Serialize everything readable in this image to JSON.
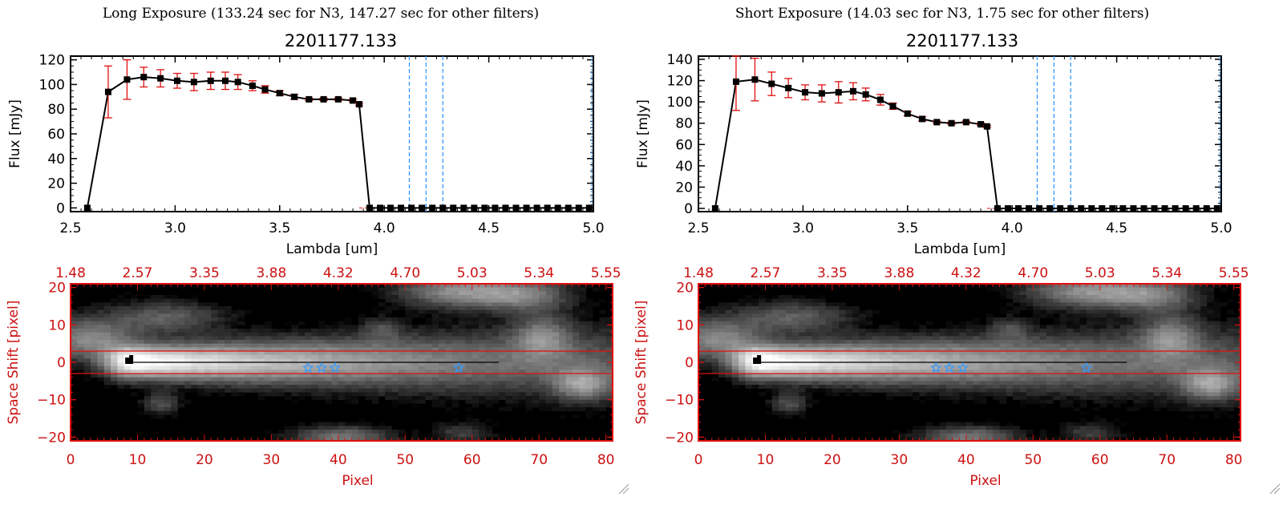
{
  "panels": [
    {
      "heading": "Long Exposure (133.24 sec for N3, 147.27 sec for other filters)",
      "spectrum": {
        "title": "2201177.133",
        "xlabel": "Lambda [um]",
        "ylabel": "Flux [mJy]",
        "yticks": [
          "0",
          "20",
          "40",
          "60",
          "80",
          "100",
          "120"
        ]
      },
      "image": {
        "xlabel": "Pixel",
        "ylabel": "Space Shift [pixel]",
        "top_ticks": [
          "1.48",
          "2.57",
          "3.35",
          "3.88",
          "4.32",
          "4.70",
          "5.03",
          "5.34",
          "5.55"
        ],
        "bottom_ticks": [
          "0",
          "10",
          "20",
          "30",
          "40",
          "50",
          "60",
          "70",
          "80"
        ],
        "left_ticks": [
          "20",
          "10",
          "0",
          "−10",
          "−20"
        ]
      }
    },
    {
      "heading": "Short Exposure (14.03 sec for N3, 1.75 sec for other filters)",
      "spectrum": {
        "title": "2201177.133",
        "xlabel": "Lambda [um]",
        "ylabel": "Flux [mJy]",
        "yticks": [
          "0",
          "20",
          "40",
          "60",
          "80",
          "100",
          "120",
          "140"
        ]
      },
      "image": {
        "xlabel": "Pixel",
        "ylabel": "Space Shift [pixel]",
        "top_ticks": [
          "1.48",
          "2.57",
          "3.35",
          "3.88",
          "4.32",
          "4.70",
          "5.03",
          "5.34",
          "5.55"
        ],
        "bottom_ticks": [
          "0",
          "10",
          "20",
          "30",
          "40",
          "50",
          "60",
          "70",
          "80"
        ],
        "left_ticks": [
          "20",
          "10",
          "0",
          "−10",
          "−20"
        ]
      }
    }
  ],
  "colors": {
    "axis": "#000000",
    "errorbar": "#e01010",
    "marker": "#000000",
    "vline": "#3399ff",
    "image_frame": "#e01010",
    "image_text": "#cc1111",
    "star": "#3399ff"
  },
  "chart_data": [
    {
      "type": "line",
      "title": "2201177.133",
      "xlabel": "Lambda [um]",
      "ylabel": "Flux [mJy]",
      "xlim": [
        2.5,
        5.0
      ],
      "ylim": [
        -3,
        123
      ],
      "xticks": [
        "2.5",
        "3.0",
        "3.5",
        "4.0",
        "4.5",
        "5.0"
      ],
      "yticks": [
        "0",
        "20",
        "40",
        "60",
        "80",
        "100",
        "120"
      ],
      "x": [
        2.58,
        2.68,
        2.77,
        2.85,
        2.93,
        3.01,
        3.09,
        3.17,
        3.24,
        3.3,
        3.37,
        3.43,
        3.5,
        3.57,
        3.64,
        3.71,
        3.78,
        3.85,
        3.88,
        3.93,
        3.98,
        4.03,
        4.08,
        4.13,
        4.18,
        4.23,
        4.28,
        4.33,
        4.38,
        4.43,
        4.48,
        4.53,
        4.58,
        4.63,
        4.68,
        4.73,
        4.78,
        4.83,
        4.88,
        4.93,
        4.98
      ],
      "y": [
        0,
        94,
        104,
        106,
        105,
        103,
        102,
        103,
        103,
        102,
        99,
        96,
        93,
        90,
        88,
        88,
        88,
        87,
        84,
        0,
        0,
        0,
        0,
        0,
        0,
        0,
        0,
        0,
        0,
        0,
        0,
        0,
        0,
        0,
        0,
        0,
        0,
        0,
        0,
        0,
        0
      ],
      "yerr": [
        0,
        21,
        16,
        8,
        7,
        6,
        7,
        7,
        7,
        6,
        4,
        3,
        2,
        2,
        1,
        1,
        1,
        1,
        1,
        0,
        0,
        0,
        0,
        0,
        0,
        0,
        0,
        0,
        0,
        0,
        0,
        0,
        0,
        0,
        0,
        0,
        0,
        0,
        0,
        0,
        0
      ],
      "vlines": [
        4.12,
        4.2,
        4.28
      ]
    },
    {
      "type": "line",
      "title": "2201177.133",
      "xlabel": "Lambda [um]",
      "ylabel": "Flux [mJy]",
      "xlim": [
        2.5,
        5.0
      ],
      "ylim": [
        -3,
        143
      ],
      "xticks": [
        "2.5",
        "3.0",
        "3.5",
        "4.0",
        "4.5",
        "5.0"
      ],
      "yticks": [
        "0",
        "20",
        "40",
        "60",
        "80",
        "100",
        "120",
        "140"
      ],
      "x": [
        2.58,
        2.68,
        2.77,
        2.85,
        2.93,
        3.01,
        3.09,
        3.17,
        3.24,
        3.3,
        3.37,
        3.43,
        3.5,
        3.57,
        3.64,
        3.71,
        3.78,
        3.85,
        3.88,
        3.93,
        3.98,
        4.03,
        4.08,
        4.13,
        4.18,
        4.23,
        4.28,
        4.33,
        4.38,
        4.43,
        4.48,
        4.53,
        4.58,
        4.63,
        4.68,
        4.73,
        4.78,
        4.83,
        4.88,
        4.93,
        4.98
      ],
      "y": [
        0,
        119,
        121,
        117,
        113,
        109,
        108,
        109,
        110,
        107,
        102,
        96,
        89,
        84,
        81,
        80,
        81,
        79,
        77,
        0,
        0,
        0,
        0,
        0,
        0,
        0,
        0,
        0,
        0,
        0,
        0,
        0,
        0,
        0,
        0,
        0,
        0,
        0,
        0,
        0,
        0
      ],
      "yerr": [
        0,
        27,
        20,
        11,
        9,
        7,
        8,
        10,
        8,
        6,
        5,
        3,
        2,
        2,
        1,
        1,
        1,
        1,
        1,
        0,
        0,
        0,
        0,
        0,
        0,
        0,
        0,
        0,
        0,
        0,
        0,
        0,
        0,
        0,
        0,
        0,
        0,
        0,
        0,
        0,
        0
      ],
      "vlines": [
        4.12,
        4.2,
        4.28
      ]
    },
    {
      "type": "heatmap",
      "xlabel": "Pixel",
      "ylabel": "Space Shift [pixel]",
      "xlim": [
        0,
        81
      ],
      "ylim": [
        -21,
        21
      ],
      "xticks": [
        "0",
        "10",
        "20",
        "30",
        "40",
        "50",
        "60",
        "70",
        "80"
      ],
      "yticks": [
        "-20",
        "-10",
        "0",
        "10",
        "20"
      ],
      "secondary_xticks": [
        "1.48",
        "2.57",
        "3.35",
        "3.88",
        "4.32",
        "4.70",
        "5.03",
        "5.34",
        "5.55"
      ],
      "hlines": [
        3,
        -3
      ],
      "source_peak": [
        9,
        0
      ],
      "stars": [
        [
          35.5,
          -1.5
        ],
        [
          37.5,
          -1.5
        ],
        [
          39.5,
          -1.5
        ],
        [
          58,
          -1.5
        ]
      ]
    },
    {
      "type": "heatmap",
      "xlabel": "Pixel",
      "ylabel": "Space Shift [pixel]",
      "xlim": [
        0,
        81
      ],
      "ylim": [
        -21,
        21
      ],
      "xticks": [
        "0",
        "10",
        "20",
        "30",
        "40",
        "50",
        "60",
        "70",
        "80"
      ],
      "yticks": [
        "-20",
        "-10",
        "0",
        "10",
        "20"
      ],
      "secondary_xticks": [
        "1.48",
        "2.57",
        "3.35",
        "3.88",
        "4.32",
        "4.70",
        "5.03",
        "5.34",
        "5.55"
      ],
      "hlines": [
        3,
        -3
      ],
      "source_peak": [
        9,
        0
      ],
      "stars": [
        [
          35.5,
          -1.5
        ],
        [
          37.5,
          -1.5
        ],
        [
          39.5,
          -1.5
        ],
        [
          58,
          -1.5
        ]
      ]
    }
  ]
}
